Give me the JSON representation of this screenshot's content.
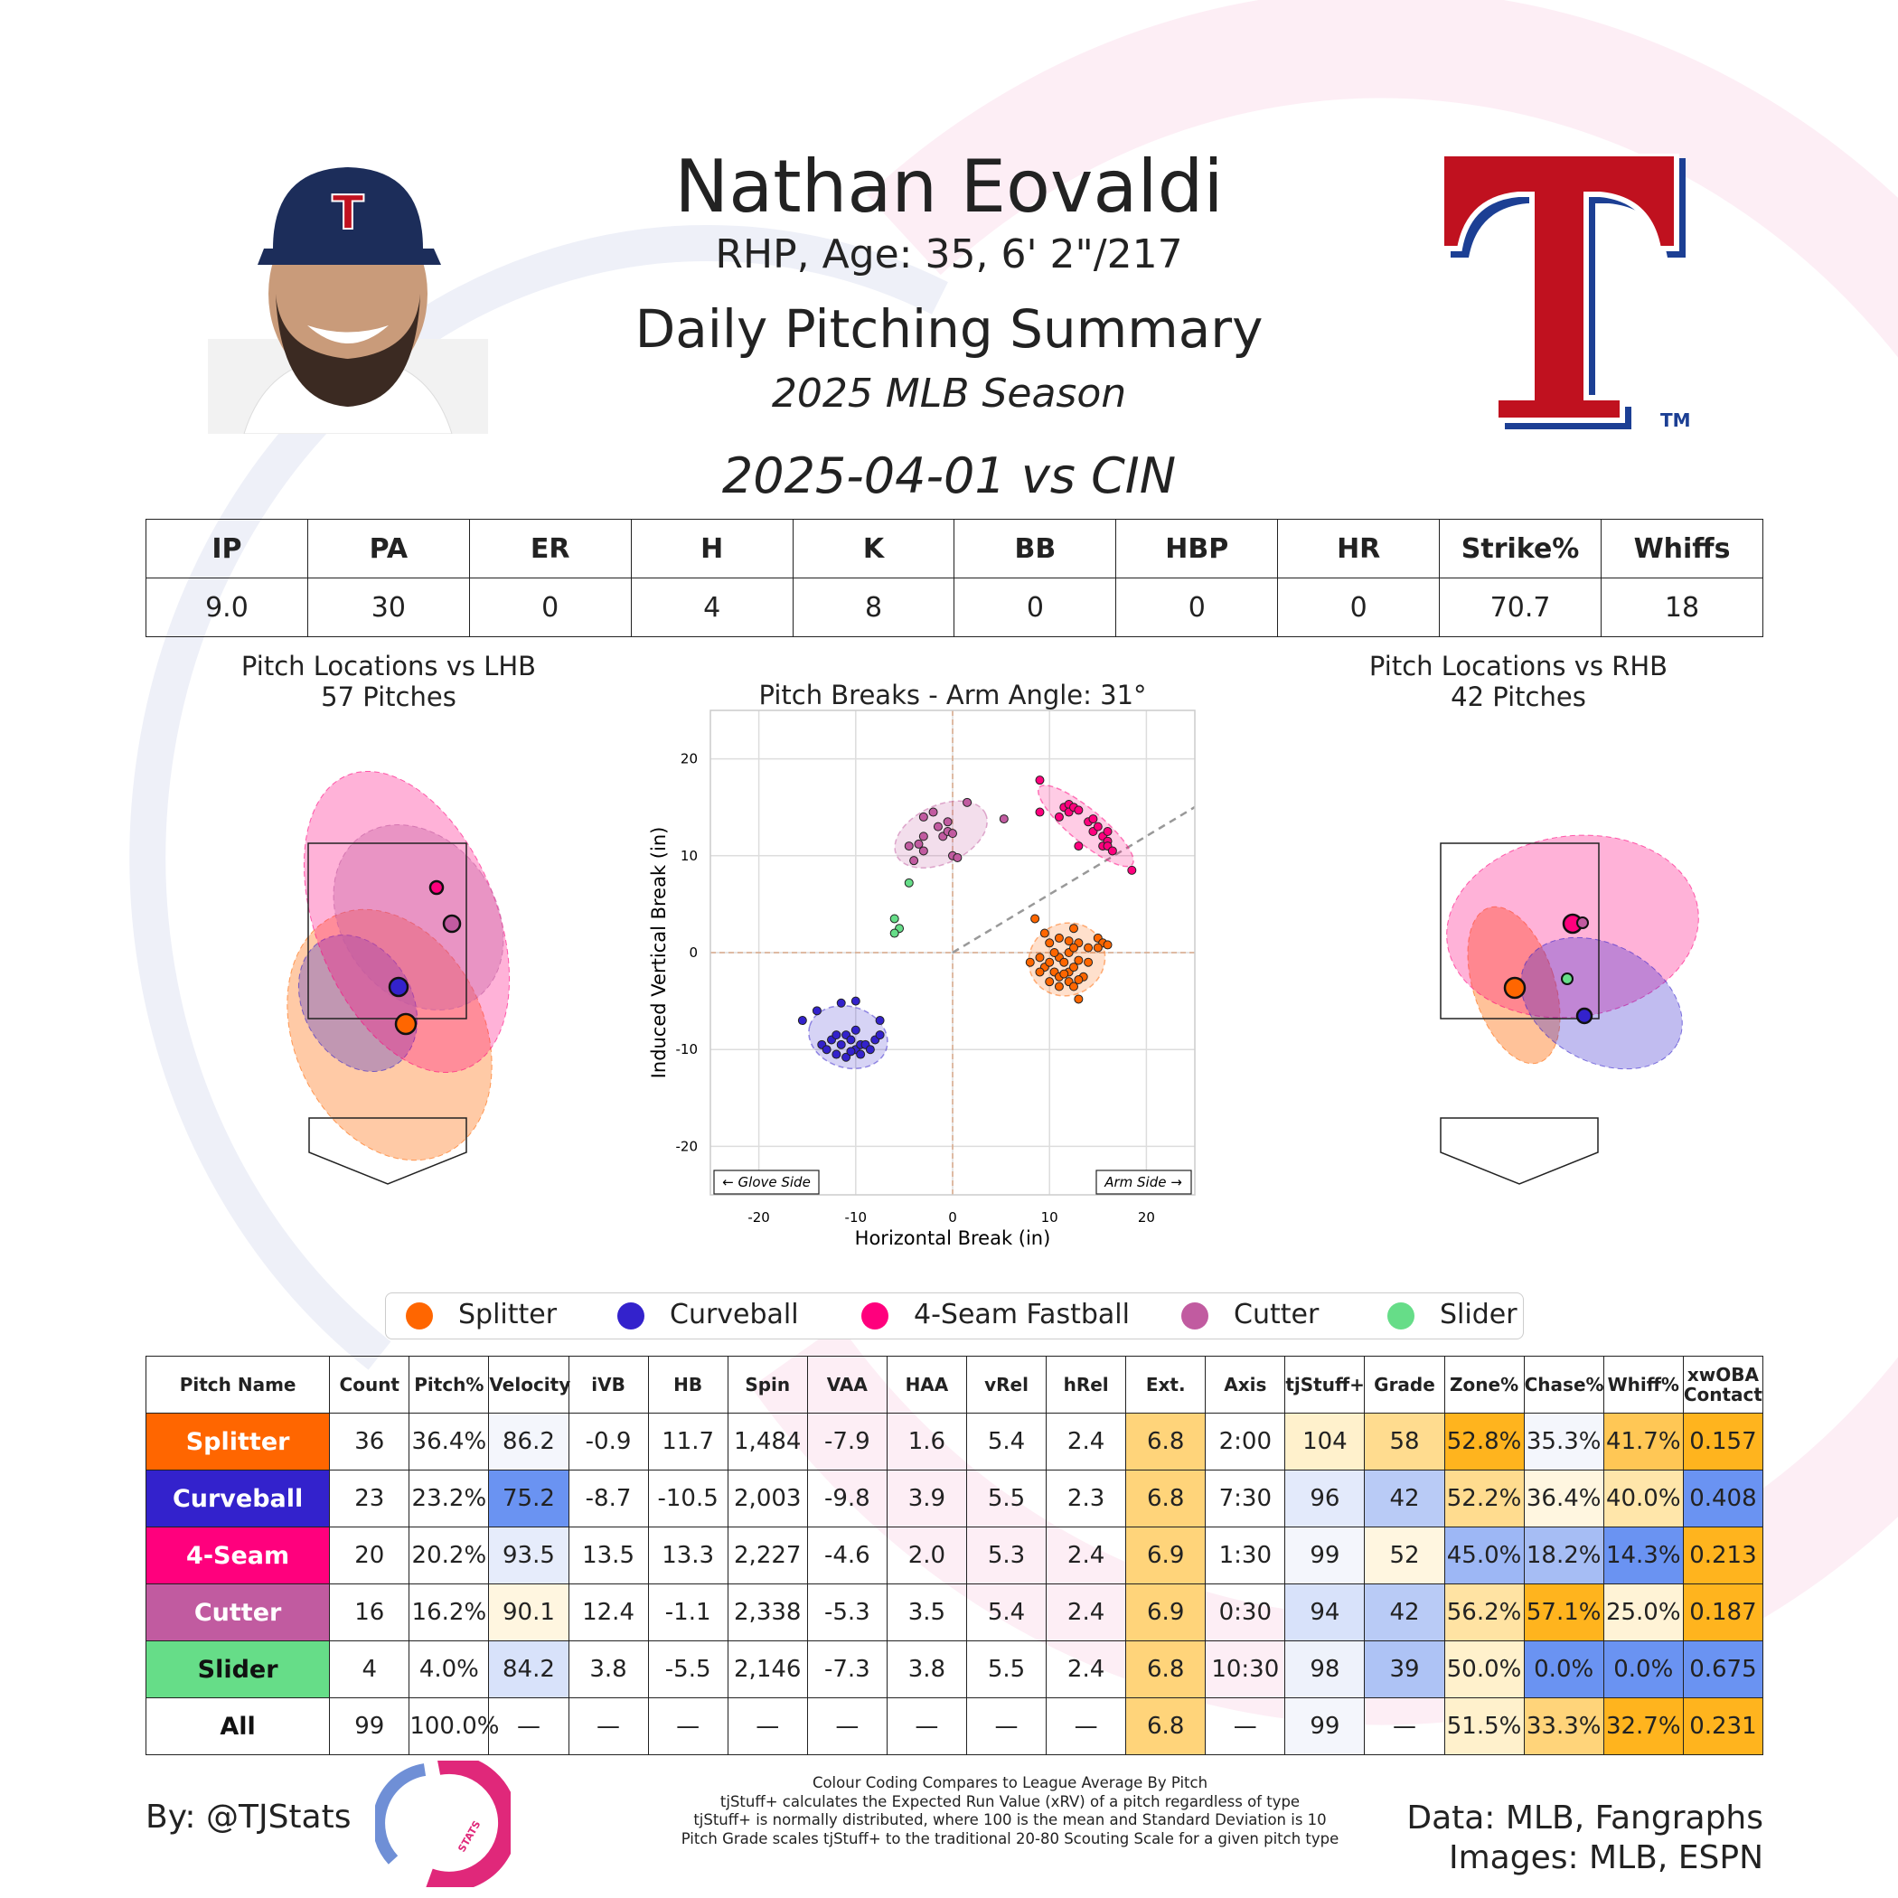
{
  "header": {
    "player_name": "Nathan Eovaldi",
    "bio": "RHP, Age: 35, 6' 2\"/217",
    "report_title": "Daily Pitching Summary",
    "season": "2025 MLB Season",
    "game": "2025-04-01 vs CIN"
  },
  "images": {
    "headshot": "player-headshot",
    "team_logo": "texas-rangers-logo",
    "team_logo_letter": "T",
    "tm_mark": "TM"
  },
  "box_score": {
    "headers": [
      "IP",
      "PA",
      "ER",
      "H",
      "K",
      "BB",
      "HBP",
      "HR",
      "Strike%",
      "Whiffs"
    ],
    "values": [
      "9.0",
      "30",
      "0",
      "4",
      "8",
      "0",
      "0",
      "0",
      "70.7",
      "18"
    ]
  },
  "pitch_colors": {
    "Splitter": "#ff6600",
    "Curveball": "#3322cc",
    "4-Seam Fastball": "#ff007d",
    "Cutter": "#c15ba0",
    "Slider": "#66dd88"
  },
  "lhb_plot": {
    "title": "Pitch Locations vs LHB",
    "subtitle": "57 Pitches"
  },
  "rhb_plot": {
    "title": "Pitch Locations vs RHB",
    "subtitle": "42 Pitches"
  },
  "chart_data": [
    {
      "type": "scatter",
      "title": "Pitch Breaks - Arm Angle: 31°",
      "xlabel": "Horizontal Break (in)",
      "ylabel": "Induced Vertical Break (in)",
      "xlim": [
        -25,
        25
      ],
      "ylim": [
        -25,
        25
      ],
      "xticks": [
        -20,
        -10,
        0,
        10,
        20
      ],
      "yticks": [
        20,
        10,
        0,
        -10,
        -20
      ],
      "arm_angle_deg": 31,
      "grid": true,
      "annotations": [
        "← Glove Side",
        "Arm Side →"
      ],
      "series": [
        {
          "name": "Splitter",
          "points": [
            [
              8.5,
              3.5
            ],
            [
              9.5,
              2
            ],
            [
              10,
              1
            ],
            [
              11,
              1.5
            ],
            [
              12,
              1.2
            ],
            [
              12.5,
              2.5
            ],
            [
              13,
              1
            ],
            [
              14,
              0.5
            ],
            [
              15,
              1.5
            ],
            [
              15.5,
              1
            ],
            [
              15,
              0.5
            ],
            [
              16,
              0.8
            ],
            [
              8,
              -1
            ],
            [
              9,
              -0.5
            ],
            [
              9.5,
              -1.5
            ],
            [
              10,
              -1
            ],
            [
              10.5,
              -2
            ],
            [
              11,
              -0.5
            ],
            [
              11.5,
              -1
            ],
            [
              12,
              -2
            ],
            [
              12,
              0
            ],
            [
              12.5,
              -1.5
            ],
            [
              13,
              -0.8
            ],
            [
              13.5,
              -2.5
            ],
            [
              14,
              -1
            ],
            [
              10,
              -3
            ],
            [
              11,
              -3.5
            ],
            [
              12,
              -3
            ],
            [
              12.5,
              -3.5
            ],
            [
              13,
              -4.8
            ],
            [
              9,
              -2
            ],
            [
              11,
              -2.5
            ],
            [
              13,
              -2.8
            ],
            [
              12.5,
              0.5
            ],
            [
              10.5,
              0
            ],
            [
              11.5,
              -2.2
            ]
          ]
        },
        {
          "name": "Curveball",
          "points": [
            [
              -15.5,
              -7
            ],
            [
              -14,
              -6
            ],
            [
              -13.5,
              -9.5
            ],
            [
              -13,
              -10
            ],
            [
              -12.5,
              -9
            ],
            [
              -12,
              -10.5
            ],
            [
              -11.5,
              -9.5
            ],
            [
              -11,
              -8.5
            ],
            [
              -10.5,
              -9
            ],
            [
              -10,
              -10
            ],
            [
              -9.5,
              -9.5
            ],
            [
              -10,
              -5
            ],
            [
              -11.5,
              -5.2
            ],
            [
              -10,
              -8
            ],
            [
              -9,
              -9.5
            ],
            [
              -8,
              -9
            ],
            [
              -7.5,
              -7
            ],
            [
              -7.5,
              -8.5
            ],
            [
              -11,
              -10.8
            ],
            [
              -9.5,
              -10.5
            ],
            [
              -12,
              -8.5
            ],
            [
              -10.5,
              -10.2
            ],
            [
              -8.5,
              -10
            ]
          ]
        },
        {
          "name": "4-Seam Fastball",
          "points": [
            [
              9,
              17.8
            ],
            [
              9,
              14.5
            ],
            [
              11,
              14
            ],
            [
              11.5,
              15
            ],
            [
              12,
              15.3
            ],
            [
              12,
              14.5
            ],
            [
              12.5,
              15
            ],
            [
              13,
              11
            ],
            [
              14,
              13.5
            ],
            [
              14.5,
              12.5
            ],
            [
              14.5,
              13.8
            ],
            [
              15,
              13
            ],
            [
              15.5,
              12
            ],
            [
              15.5,
              11
            ],
            [
              16,
              12.5
            ],
            [
              16,
              11.5
            ],
            [
              16,
              11
            ],
            [
              16.5,
              10.5
            ],
            [
              18.5,
              8.5
            ],
            [
              13,
              14.7
            ]
          ]
        },
        {
          "name": "Cutter",
          "points": [
            [
              -4.5,
              11
            ],
            [
              -4,
              9.5
            ],
            [
              -3,
              10.5
            ],
            [
              -3.5,
              11.2
            ],
            [
              -3,
              12
            ],
            [
              -3,
              14
            ],
            [
              -2,
              14.5
            ],
            [
              -1.5,
              13
            ],
            [
              -1,
              12
            ],
            [
              -0.5,
              12.5
            ],
            [
              -0.5,
              13.5
            ],
            [
              0,
              12.3
            ],
            [
              0,
              10
            ],
            [
              0.5,
              9.8
            ],
            [
              1.5,
              15.5
            ],
            [
              5.3,
              13.8
            ]
          ]
        },
        {
          "name": "Slider",
          "points": [
            [
              -4.5,
              7.2
            ],
            [
              -6,
              3.5
            ],
            [
              -5.5,
              2.5
            ],
            [
              -6,
              2
            ]
          ]
        }
      ]
    },
    {
      "type": "scatter",
      "title": "Pitch Locations vs LHB",
      "note": "average location per pitch type",
      "series": [
        {
          "name": "Splitter",
          "x": 0.25,
          "y": 1.75
        },
        {
          "name": "Curveball",
          "x": 0.15,
          "y": 2.05
        },
        {
          "name": "4-Seam Fastball",
          "x": 0.55,
          "y": 3.15
        },
        {
          "name": "Cutter",
          "x": 0.75,
          "y": 2.75
        }
      ]
    },
    {
      "type": "scatter",
      "title": "Pitch Locations vs RHB",
      "note": "average location per pitch type",
      "series": [
        {
          "name": "Splitter",
          "x": -0.6,
          "y": 2.1
        },
        {
          "name": "Curveball",
          "x": 0.2,
          "y": 1.7
        },
        {
          "name": "4-Seam Fastball",
          "x": 0.0,
          "y": 2.8
        },
        {
          "name": "Cutter",
          "x": 0.1,
          "y": 2.8
        },
        {
          "name": "Slider",
          "x": -0.05,
          "y": 2.15
        }
      ]
    }
  ],
  "legend": [
    "Splitter",
    "Curveball",
    "4-Seam Fastball",
    "Cutter",
    "Slider"
  ],
  "pitch_table": {
    "headers": [
      "Pitch Name",
      "Count",
      "Pitch%",
      "Velocity",
      "iVB",
      "HB",
      "Spin",
      "VAA",
      "HAA",
      "vRel",
      "hRel",
      "Ext.",
      "Axis",
      "tjStuff+",
      "Grade",
      "Zone%",
      "Chase%",
      "Whiff%",
      "xwOBA Contact"
    ],
    "rows": [
      {
        "name": "Splitter",
        "name_color": "#ff6600",
        "name_text": "#ffffff",
        "cells": [
          "36",
          "36.4%",
          "86.2",
          "-0.9",
          "11.7",
          "1,484",
          "-7.9",
          "1.6",
          "5.4",
          "2.4",
          "6.8",
          "2:00",
          "104",
          "58",
          "52.8%",
          "35.3%",
          "41.7%",
          "0.157"
        ],
        "bg": [
          "",
          "",
          "#f4f6fc",
          "",
          "",
          "",
          "",
          "",
          "",
          "",
          "#ffd47a",
          "",
          "#fff1cc",
          "#ffdc8f",
          "#ffb41e",
          "#f4f6fc",
          "#ffc755",
          "#ffb41e"
        ]
      },
      {
        "name": "Curveball",
        "name_color": "#3322cc",
        "name_text": "#ffffff",
        "cells": [
          "23",
          "23.2%",
          "75.2",
          "-8.7",
          "-10.5",
          "2,003",
          "-9.8",
          "3.9",
          "5.5",
          "2.3",
          "6.8",
          "7:30",
          "96",
          "42",
          "52.2%",
          "36.4%",
          "40.0%",
          "0.408"
        ],
        "bg": [
          "",
          "",
          "#6a93f2",
          "",
          "",
          "",
          "",
          "",
          "",
          "",
          "#ffd47a",
          "",
          "#e3eafb",
          "#b9cbf6",
          "#ffdc8f",
          "#fff6e0",
          "#ffe6aa",
          "#6a93f2"
        ]
      },
      {
        "name": "4-Seam",
        "name_color": "#ff007d",
        "name_text": "#ffffff",
        "cells": [
          "20",
          "20.2%",
          "93.5",
          "13.5",
          "13.3",
          "2,227",
          "-4.6",
          "2.0",
          "5.3",
          "2.4",
          "6.9",
          "1:30",
          "99",
          "52",
          "45.0%",
          "18.2%",
          "14.3%",
          "0.213"
        ],
        "bg": [
          "",
          "",
          "#e6ecfb",
          "",
          "",
          "",
          "",
          "",
          "",
          "",
          "#ffd47a",
          "",
          "#f4f6fc",
          "#fff6e0",
          "#9db7f5",
          "#a6bdf4",
          "#6a93f2",
          "#ffb41e"
        ]
      },
      {
        "name": "Cutter",
        "name_color": "#c15ba0",
        "name_text": "#ffffff",
        "cells": [
          "16",
          "16.2%",
          "90.1",
          "12.4",
          "-1.1",
          "2,338",
          "-5.3",
          "3.5",
          "5.4",
          "2.4",
          "6.9",
          "0:30",
          "94",
          "42",
          "56.2%",
          "57.1%",
          "25.0%",
          "0.187"
        ],
        "bg": [
          "",
          "",
          "#fff6e0",
          "",
          "",
          "",
          "",
          "",
          "",
          "",
          "#ffd47a",
          "",
          "#d8e2fa",
          "#b9cbf6",
          "#ffe3a3",
          "#ffb41e",
          "#fff3d6",
          "#ffb41e"
        ]
      },
      {
        "name": "Slider",
        "name_color": "#66dd88",
        "name_text": "#111111",
        "cells": [
          "4",
          "4.0%",
          "84.2",
          "3.8",
          "-5.5",
          "2,146",
          "-7.3",
          "3.8",
          "5.5",
          "2.4",
          "6.8",
          "10:30",
          "98",
          "39",
          "50.0%",
          "0.0%",
          "0.0%",
          "0.675"
        ],
        "bg": [
          "",
          "",
          "#d8e2fa",
          "",
          "",
          "",
          "",
          "",
          "",
          "",
          "#ffd47a",
          "",
          "#eef2fb",
          "#aec3f5",
          "#fff1cc",
          "#6a93f2",
          "#6a93f2",
          "#6a93f2"
        ]
      },
      {
        "name": "All",
        "name_color": "#ffffff",
        "name_text": "#111111",
        "cells": [
          "99",
          "100.0%",
          "—",
          "—",
          "—",
          "—",
          "—",
          "—",
          "—",
          "—",
          "6.8",
          "—",
          "99",
          "—",
          "51.5%",
          "33.3%",
          "32.7%",
          "0.231"
        ],
        "bg": [
          "",
          "",
          "",
          "",
          "",
          "",
          "",
          "",
          "",
          "",
          "#ffd47a",
          "",
          "#f4f6fc",
          "",
          "#fff1cc",
          "#ffd47a",
          "#ffb41e",
          "#ffb41e"
        ]
      }
    ]
  },
  "footer": {
    "byline": "By: @TJStats",
    "logo_text": "STATS",
    "data_source": "Data: MLB, Fangraphs",
    "image_source": "Images: MLB, ESPN",
    "notes": [
      "Colour Coding Compares to League Average By Pitch",
      "tjStuff+ calculates the Expected Run Value (xRV) of a pitch regardless of type",
      "tjStuff+ is normally distributed, where 100 is the mean and Standard Deviation is 10",
      "Pitch Grade scales tjStuff+ to the traditional 20-80 Scouting Scale for a given pitch type"
    ]
  }
}
